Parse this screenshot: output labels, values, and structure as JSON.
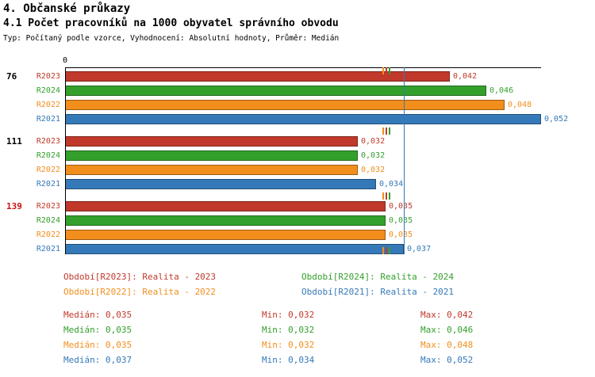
{
  "header": {
    "title1": "4. Občanské průkazy",
    "title2": "4.1 Počet pracovníků na 1000 obyvatel správního obvodu",
    "subtitle": "Typ: Počítaný podle vzorce, Vyhodnocení: Absolutní hodnoty, Průměr: Medián"
  },
  "colors": {
    "R2023": "#C0392B",
    "R2024": "#33A02C",
    "R2022": "#F28E1C",
    "R2021": "#3579B8"
  },
  "chart_data": {
    "type": "bar",
    "orientation": "horizontal",
    "axis_zero_label": "0",
    "value_range": [
      0,
      0.052
    ],
    "grid": false,
    "series_order": [
      "R2023",
      "R2024",
      "R2022",
      "R2021"
    ],
    "groups": [
      {
        "id": "76",
        "id_color": "#000000",
        "bars": [
          {
            "series": "R2023",
            "value": 0.042,
            "label": "0,042"
          },
          {
            "series": "R2024",
            "value": 0.046,
            "label": "0,046"
          },
          {
            "series": "R2022",
            "value": 0.048,
            "label": "0,048"
          },
          {
            "series": "R2021",
            "value": 0.052,
            "label": "0,052"
          }
        ]
      },
      {
        "id": "111",
        "id_color": "#000000",
        "bars": [
          {
            "series": "R2023",
            "value": 0.032,
            "label": "0,032"
          },
          {
            "series": "R2024",
            "value": 0.032,
            "label": "0,032"
          },
          {
            "series": "R2022",
            "value": 0.032,
            "label": "0,032"
          },
          {
            "series": "R2021",
            "value": 0.034,
            "label": "0,034"
          }
        ]
      },
      {
        "id": "139",
        "id_color": "#CC1111",
        "bars": [
          {
            "series": "R2023",
            "value": 0.035,
            "label": "0,035"
          },
          {
            "series": "R2024",
            "value": 0.035,
            "label": "0,035"
          },
          {
            "series": "R2022",
            "value": 0.035,
            "label": "0,035"
          },
          {
            "series": "R2021",
            "value": 0.037,
            "label": "0,037"
          }
        ]
      }
    ],
    "medians": {
      "R2023": 0.035,
      "R2024": 0.035,
      "R2022": 0.035,
      "R2021": 0.037
    }
  },
  "legend": [
    {
      "series": "R2023",
      "label": "Období[R2023]: Realita - 2023"
    },
    {
      "series": "R2024",
      "label": "Období[R2024]: Realita - 2024"
    },
    {
      "series": "R2022",
      "label": "Období[R2022]: Realita - 2022"
    },
    {
      "series": "R2021",
      "label": "Období[R2021]: Realita - 2021"
    }
  ],
  "stats": [
    {
      "series": "R2023",
      "median": "Medián: 0,035",
      "min": "Min: 0,032",
      "max": "Max: 0,042"
    },
    {
      "series": "R2024",
      "median": "Medián: 0,035",
      "min": "Min: 0,032",
      "max": "Max: 0,046"
    },
    {
      "series": "R2022",
      "median": "Medián: 0,035",
      "min": "Min: 0,032",
      "max": "Max: 0,048"
    },
    {
      "series": "R2021",
      "median": "Medián: 0,037",
      "min": "Min: 0,034",
      "max": "Max: 0,052"
    }
  ]
}
